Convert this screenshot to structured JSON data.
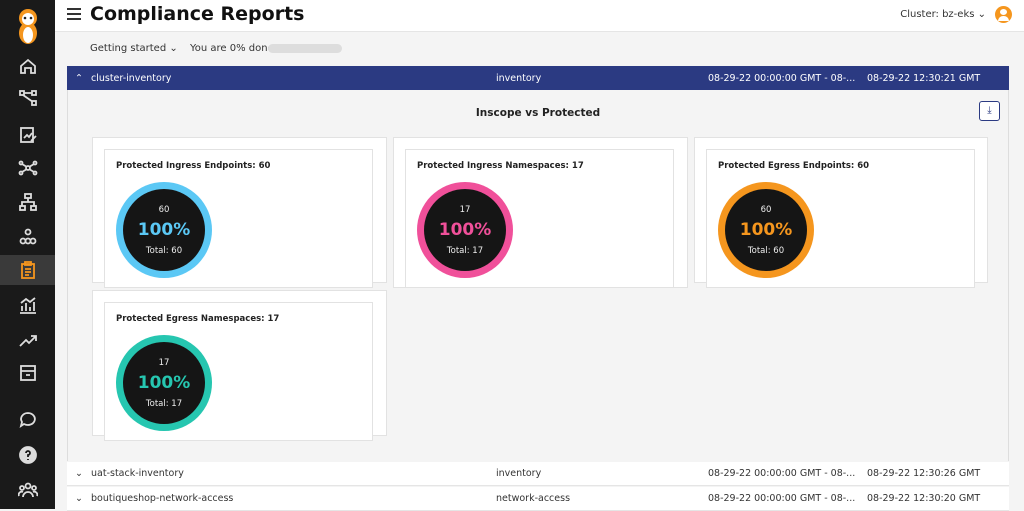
{
  "header": {
    "title": "Compliance Reports",
    "cluster": "Cluster: bz-eks ⌄"
  },
  "onboarding": {
    "getting_started": "Getting started ⌄",
    "progress_text": "You are 0% done",
    "progress_percent": 0
  },
  "sidebar": {
    "items": [
      {
        "icon": "home-icon"
      },
      {
        "icon": "flow-icon"
      },
      {
        "icon": "edit-chart-icon"
      },
      {
        "icon": "network-icon"
      },
      {
        "icon": "hierarchy-icon"
      },
      {
        "icon": "cluster-icon"
      },
      {
        "icon": "clipboard-icon",
        "active": true
      },
      {
        "icon": "bar-chart-icon"
      },
      {
        "icon": "trending-icon"
      },
      {
        "icon": "box-icon"
      },
      {
        "icon": "chat-icon"
      },
      {
        "icon": "help-icon"
      },
      {
        "icon": "users-icon"
      }
    ]
  },
  "reports": [
    {
      "name": "cluster-inventory",
      "type": "inventory",
      "range": "08-29-22 00:00:00 GMT - 08-...",
      "created": "08-29-22 12:30:21 GMT",
      "expanded": true
    },
    {
      "name": "uat-stack-inventory",
      "type": "inventory",
      "range": "08-29-22 00:00:00 GMT - 08-...",
      "created": "08-29-22 12:30:26 GMT",
      "expanded": false
    },
    {
      "name": "boutiqueshop-network-access",
      "type": "network-access",
      "range": "08-29-22 00:00:00 GMT - 08-...",
      "created": "08-29-22 12:30:20 GMT",
      "expanded": false
    }
  ],
  "panel": {
    "title": "Inscope vs Protected",
    "download_icon": "download-icon",
    "cards": [
      {
        "title": "Protected Ingress Endpoints: 60",
        "value": "60",
        "percent": "100%",
        "total": "Total: 60",
        "color": "#5bc8f5"
      },
      {
        "title": "Protected Ingress Namespaces: 17",
        "value": "17",
        "percent": "100%",
        "total": "Total: 17",
        "color": "#f0509a"
      },
      {
        "title": "Protected Egress Endpoints: 60",
        "value": "60",
        "percent": "100%",
        "total": "Total: 60",
        "color": "#f5961e"
      },
      {
        "title": "Protected Egress Namespaces: 17",
        "value": "17",
        "percent": "100%",
        "total": "Total: 17",
        "color": "#26c6b0"
      }
    ]
  }
}
